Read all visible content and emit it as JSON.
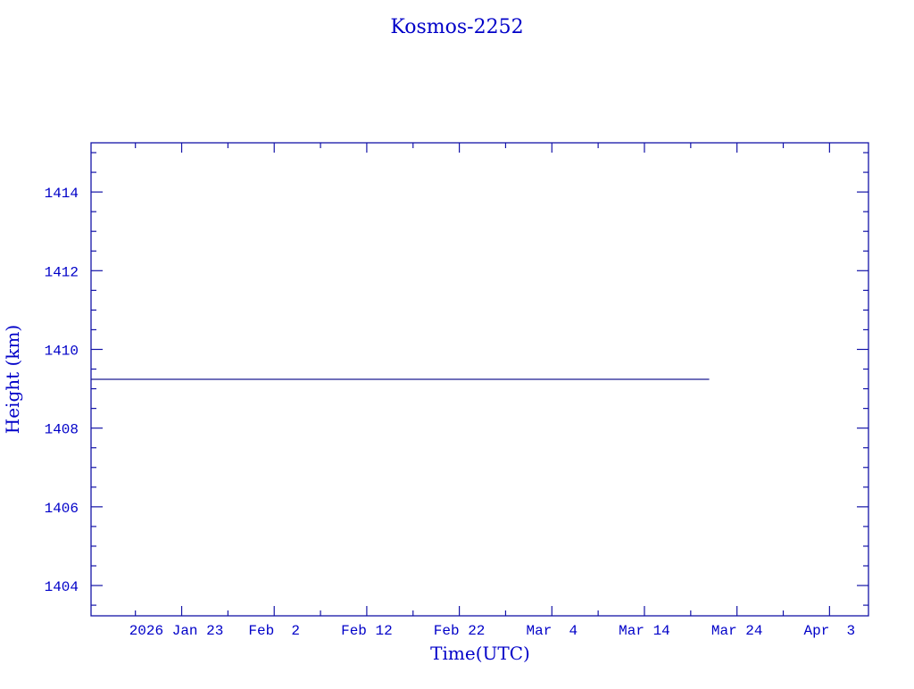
{
  "chart_data": {
    "type": "line",
    "title": "Kosmos-2252",
    "xlabel": "Time(UTC)",
    "ylabel": "Height (km)",
    "xlim": [
      "2026-01-13T05:00",
      "2026-04-07T05:00"
    ],
    "ylim": [
      1403.23,
      1415.25
    ],
    "x_ticks": [
      {
        "date": "2026-01-23",
        "label": "2026 Jan 23"
      },
      {
        "date": "2026-02-02",
        "label": "Feb  2"
      },
      {
        "date": "2026-02-12",
        "label": "Feb 12"
      },
      {
        "date": "2026-02-22",
        "label": "Feb 22"
      },
      {
        "date": "2026-03-04",
        "label": "Mar  4"
      },
      {
        "date": "2026-03-14",
        "label": "Mar 14"
      },
      {
        "date": "2026-03-24",
        "label": "Mar 24"
      },
      {
        "date": "2026-04-03",
        "label": "Apr  3"
      }
    ],
    "y_ticks": [
      1404,
      1406,
      1408,
      1410,
      1412,
      1414
    ],
    "grid": false,
    "series": [
      {
        "x": [
          "2026-01-13T05:00",
          "2026-03-21"
        ],
        "y": [
          1409.24,
          1409.24
        ]
      }
    ],
    "colors": {
      "axis": "#1414a8",
      "text": "#0000c8",
      "line": "#1a1a90"
    }
  }
}
